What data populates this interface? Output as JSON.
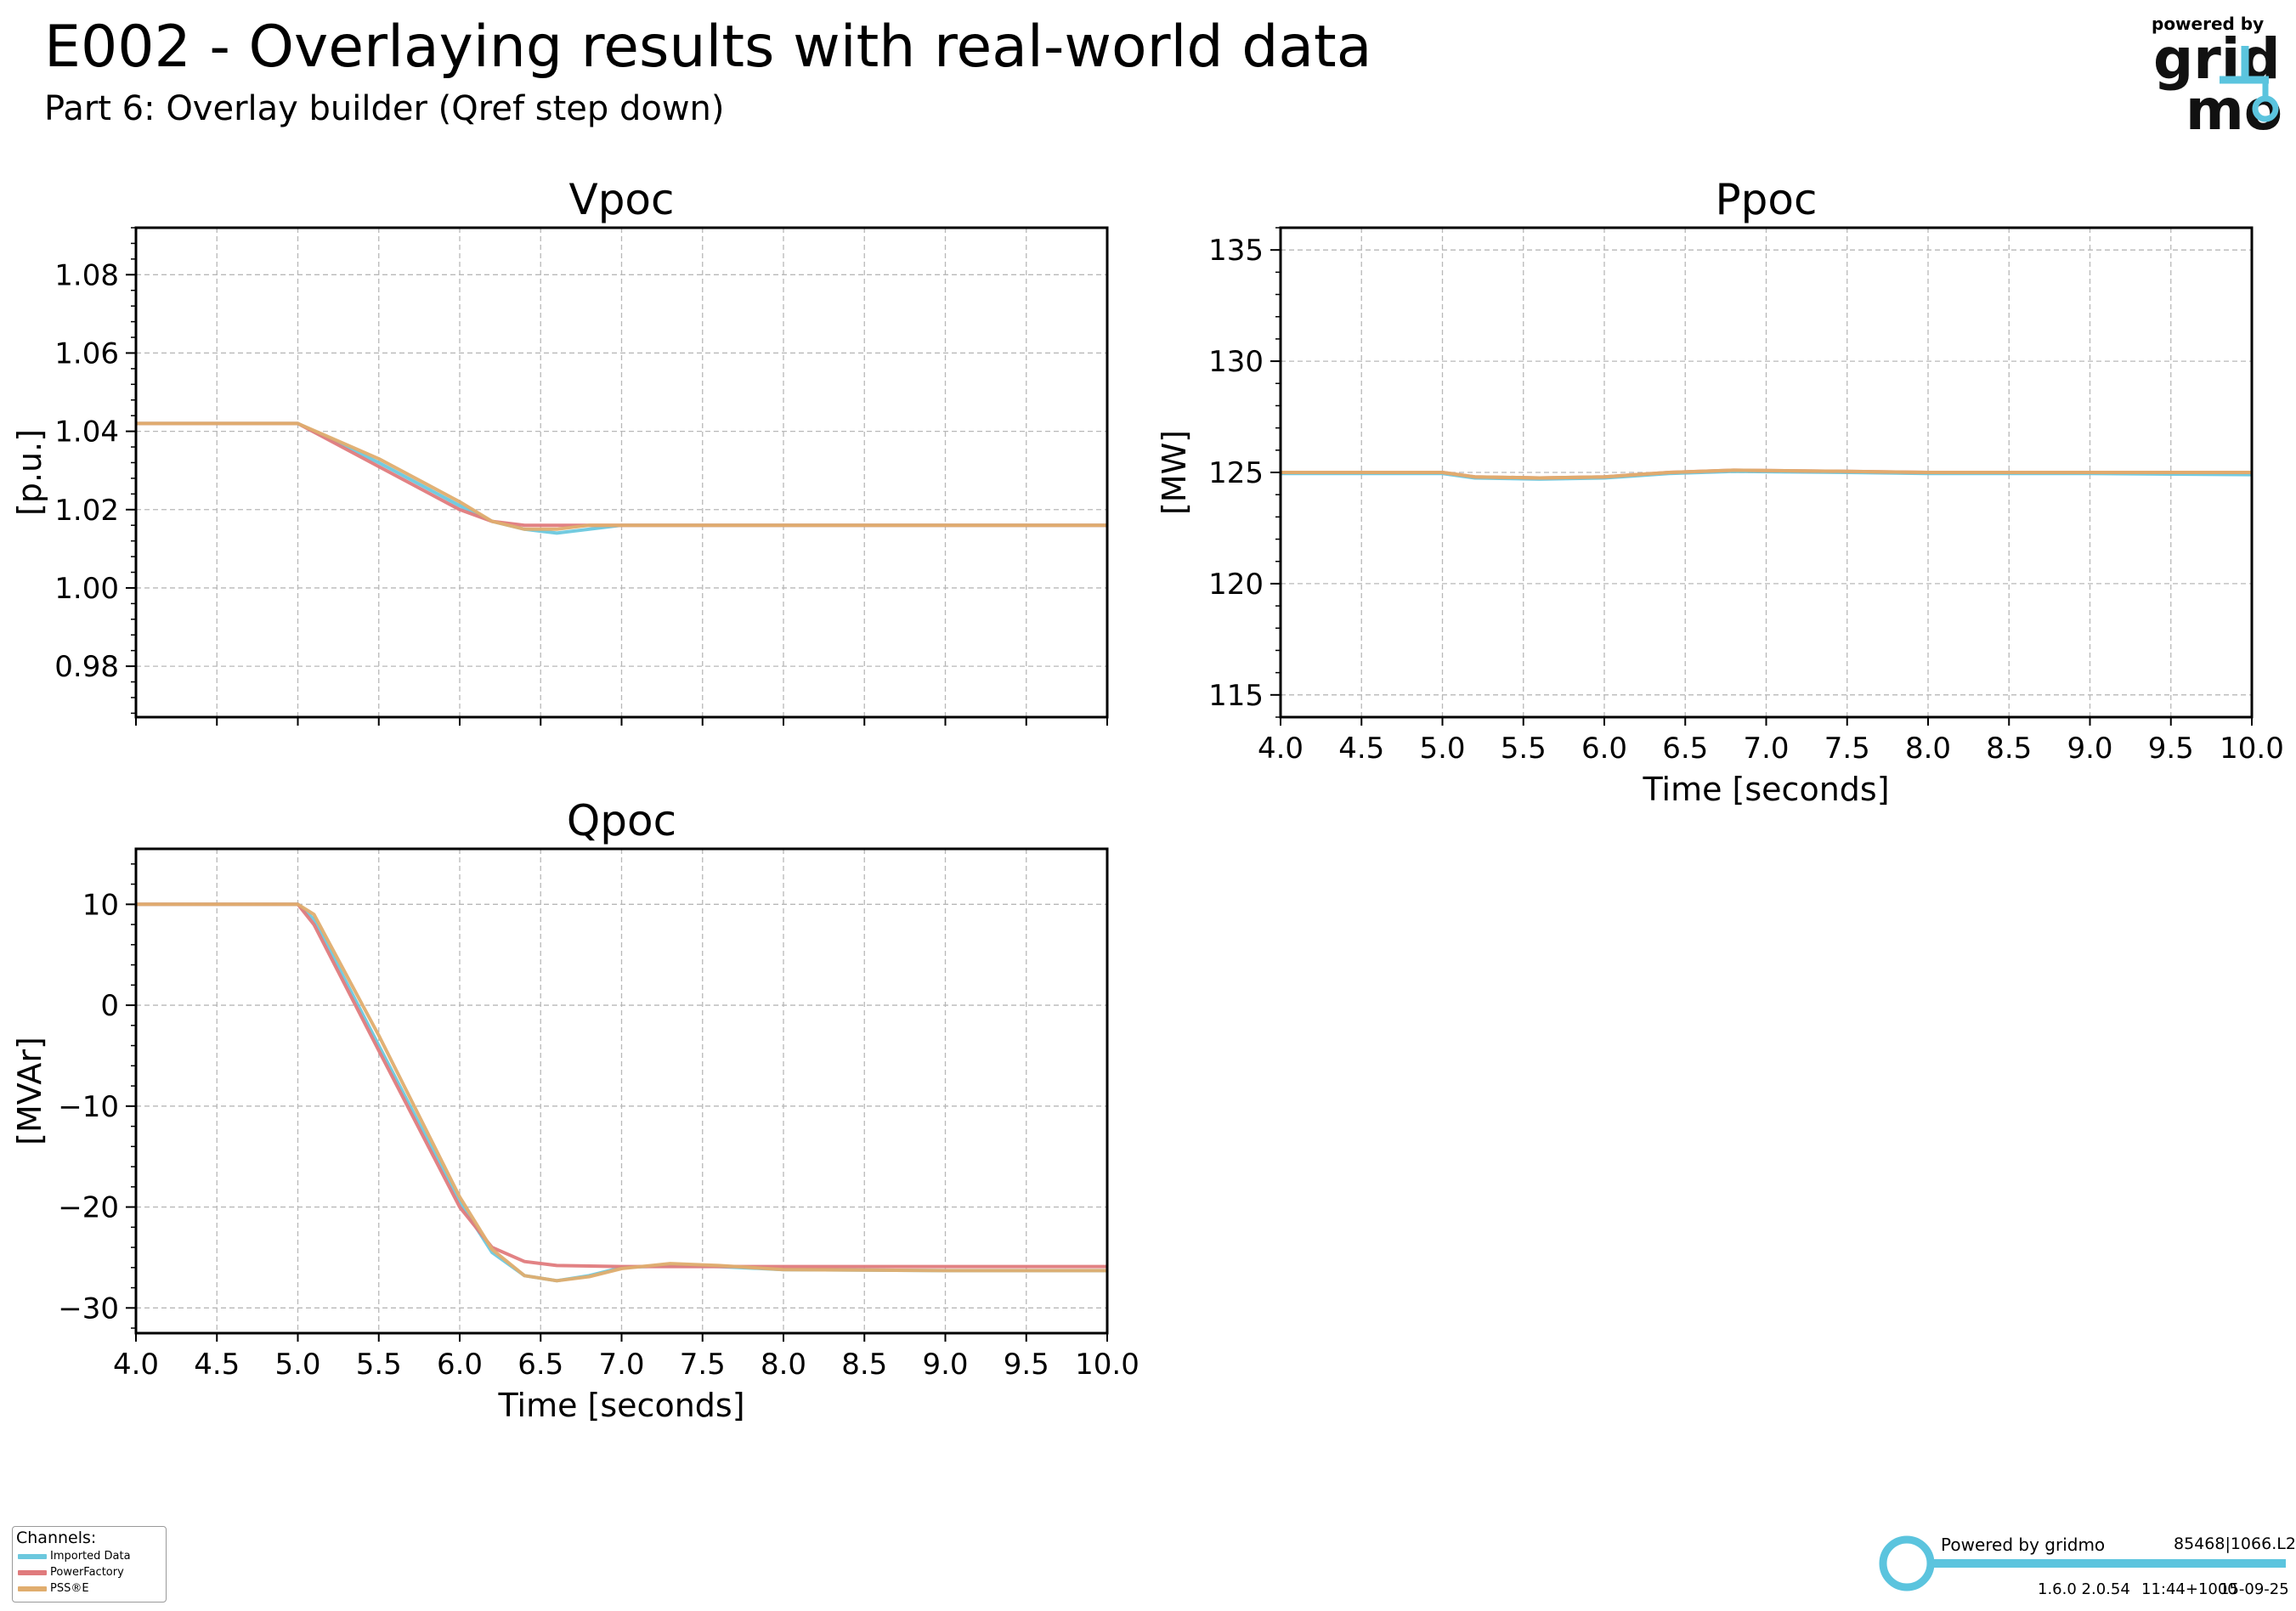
{
  "header": {
    "title": "E002 - Overlaying results with real-world data",
    "subtitle": "Part 6: Overlay builder (Qref step down)"
  },
  "logo": {
    "powered_by": "powered by",
    "word_top": "grid",
    "word_bottom": "mo"
  },
  "colors": {
    "imported": "#6cc8de",
    "powerfactory": "#e07b7d",
    "psse": "#e0ad6e",
    "grid": "#b8b8b8",
    "brand": "#5bc4de"
  },
  "legend": {
    "title": "Channels:",
    "items": [
      {
        "label": "Imported Data",
        "color": "#6cc8de"
      },
      {
        "label": "PowerFactory",
        "color": "#e07b7d"
      },
      {
        "label": "PSS®E",
        "color": "#e0ad6e"
      }
    ]
  },
  "footer": {
    "powered": "Powered by gridmo",
    "build_id": "85468|1066.L2",
    "versions": "1.6.0  2.0.54",
    "time": "11:44+1000",
    "date": "15-09-25"
  },
  "chart_data": [
    {
      "id": "vpoc",
      "type": "line",
      "title": "Vpoc",
      "xlabel": "",
      "ylabel": "[p.u.]",
      "xlim": [
        4.0,
        10.0
      ],
      "ylim": [
        0.967,
        1.092
      ],
      "xticks": [
        4.0,
        4.5,
        5.0,
        5.5,
        6.0,
        6.5,
        7.0,
        7.5,
        8.0,
        8.5,
        9.0,
        9.5,
        10.0
      ],
      "xtick_labels_visible": false,
      "yticks": [
        0.98,
        1.0,
        1.02,
        1.04,
        1.06,
        1.08
      ],
      "ytick_labels": [
        "0.98",
        "1.00",
        "1.02",
        "1.04",
        "1.06",
        "1.08"
      ],
      "grid": true,
      "series": [
        {
          "name": "Imported Data",
          "x": [
            4.0,
            5.0,
            5.5,
            6.0,
            6.2,
            6.4,
            6.6,
            6.8,
            7.0,
            7.5,
            8.0,
            9.0,
            10.0
          ],
          "y": [
            1.042,
            1.042,
            1.032,
            1.021,
            1.017,
            1.015,
            1.014,
            1.015,
            1.016,
            1.016,
            1.016,
            1.016,
            1.016
          ]
        },
        {
          "name": "PowerFactory",
          "x": [
            4.0,
            5.0,
            5.5,
            6.0,
            6.2,
            6.4,
            6.6,
            7.0,
            8.0,
            9.0,
            10.0
          ],
          "y": [
            1.042,
            1.042,
            1.031,
            1.02,
            1.017,
            1.016,
            1.016,
            1.016,
            1.016,
            1.016,
            1.016
          ]
        },
        {
          "name": "PSS®E",
          "x": [
            4.0,
            5.0,
            5.5,
            6.0,
            6.2,
            6.4,
            6.6,
            6.8,
            7.0,
            7.5,
            8.0,
            9.0,
            10.0
          ],
          "y": [
            1.042,
            1.042,
            1.033,
            1.022,
            1.017,
            1.015,
            1.015,
            1.016,
            1.016,
            1.016,
            1.016,
            1.016,
            1.016
          ]
        }
      ]
    },
    {
      "id": "ppoc",
      "type": "line",
      "title": "Ppoc",
      "xlabel": "Time [seconds]",
      "ylabel": "[MW]",
      "xlim": [
        4.0,
        10.0
      ],
      "ylim": [
        114.0,
        136.0
      ],
      "xticks": [
        4.0,
        4.5,
        5.0,
        5.5,
        6.0,
        6.5,
        7.0,
        7.5,
        8.0,
        8.5,
        9.0,
        9.5,
        10.0
      ],
      "xtick_labels_visible": true,
      "xtick_labels": [
        "4.0",
        "4.5",
        "5.0",
        "5.5",
        "6.0",
        "6.5",
        "7.0",
        "7.5",
        "8.0",
        "8.5",
        "9.0",
        "9.5",
        "10.0"
      ],
      "yticks": [
        115,
        120,
        125,
        130,
        135
      ],
      "ytick_labels": [
        "115",
        "120",
        "125",
        "130",
        "135"
      ],
      "grid": true,
      "series": [
        {
          "name": "Imported Data",
          "x": [
            4.0,
            5.0,
            5.2,
            5.6,
            6.0,
            6.4,
            6.8,
            7.5,
            8.0,
            9.0,
            10.0
          ],
          "y": [
            124.95,
            124.95,
            124.75,
            124.7,
            124.75,
            124.95,
            125.05,
            125.0,
            124.95,
            124.95,
            124.9
          ]
        },
        {
          "name": "PowerFactory",
          "x": [
            4.0,
            5.0,
            5.2,
            5.6,
            6.0,
            6.4,
            6.8,
            7.5,
            8.0,
            9.0,
            10.0
          ],
          "y": [
            125.0,
            125.0,
            124.8,
            124.75,
            124.8,
            125.0,
            125.1,
            125.05,
            125.0,
            125.0,
            125.0
          ]
        },
        {
          "name": "PSS®E",
          "x": [
            4.0,
            5.0,
            5.2,
            5.6,
            6.0,
            6.4,
            6.8,
            7.5,
            8.0,
            9.0,
            10.0
          ],
          "y": [
            125.0,
            125.0,
            124.8,
            124.75,
            124.8,
            125.0,
            125.1,
            125.05,
            125.0,
            125.0,
            125.0
          ]
        }
      ]
    },
    {
      "id": "qpoc",
      "type": "line",
      "title": "Qpoc",
      "xlabel": "Time [seconds]",
      "ylabel": "[MVAr]",
      "xlim": [
        4.0,
        10.0
      ],
      "ylim": [
        -32.5,
        15.5
      ],
      "xticks": [
        4.0,
        4.5,
        5.0,
        5.5,
        6.0,
        6.5,
        7.0,
        7.5,
        8.0,
        8.5,
        9.0,
        9.5,
        10.0
      ],
      "xtick_labels_visible": true,
      "xtick_labels": [
        "4.0",
        "4.5",
        "5.0",
        "5.5",
        "6.0",
        "6.5",
        "7.0",
        "7.5",
        "8.0",
        "8.5",
        "9.0",
        "9.5",
        "10.0"
      ],
      "yticks": [
        -30,
        -20,
        -10,
        0,
        10
      ],
      "ytick_labels": [
        "−30",
        "−20",
        "−10",
        "0",
        "10"
      ],
      "grid": true,
      "series": [
        {
          "name": "Imported Data",
          "x": [
            4.0,
            5.0,
            5.1,
            5.5,
            6.0,
            6.2,
            6.4,
            6.6,
            6.8,
            7.0,
            7.3,
            7.6,
            8.0,
            9.0,
            10.0
          ],
          "y": [
            10.0,
            10.0,
            8.5,
            -4.0,
            -19.5,
            -24.5,
            -26.8,
            -27.3,
            -26.8,
            -26.0,
            -25.8,
            -25.9,
            -26.2,
            -26.3,
            -26.3
          ]
        },
        {
          "name": "PowerFactory",
          "x": [
            4.0,
            5.0,
            5.1,
            5.5,
            6.0,
            6.2,
            6.4,
            6.6,
            7.0,
            8.0,
            9.0,
            10.0
          ],
          "y": [
            10.0,
            10.0,
            8.0,
            -4.5,
            -20.0,
            -24.0,
            -25.4,
            -25.8,
            -25.9,
            -25.9,
            -25.9,
            -25.9
          ]
        },
        {
          "name": "PSS®E",
          "x": [
            4.0,
            5.0,
            5.1,
            5.5,
            6.0,
            6.2,
            6.4,
            6.6,
            6.8,
            7.0,
            7.3,
            7.6,
            8.0,
            9.0,
            10.0
          ],
          "y": [
            10.0,
            10.0,
            9.0,
            -3.0,
            -19.0,
            -24.2,
            -26.8,
            -27.3,
            -26.9,
            -26.1,
            -25.6,
            -25.8,
            -26.2,
            -26.3,
            -26.3
          ]
        }
      ]
    }
  ]
}
